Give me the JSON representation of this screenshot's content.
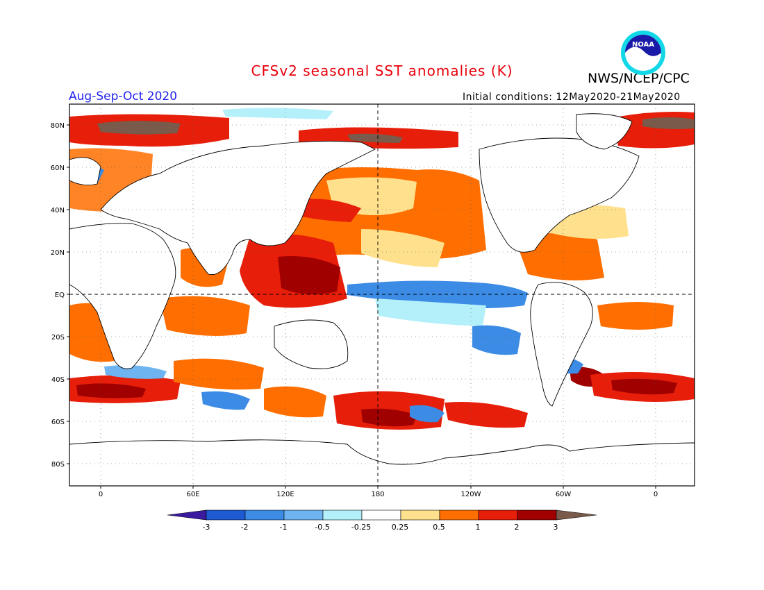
{
  "header": {
    "title": "CFSv2 seasonal SST anomalies (K)",
    "agency": "NWS/NCEP/CPC",
    "logo_text": "NOAA",
    "season": "Aug-Sep-Oct 2020",
    "initial_conditions": "Initial conditions: 12May2020-21May2020"
  },
  "map": {
    "lat_ticks": [
      "80N",
      "60N",
      "40N",
      "20N",
      "EQ",
      "20S",
      "40S",
      "60S",
      "80S"
    ],
    "lon_ticks": [
      "0",
      "60E",
      "120E",
      "180",
      "120W",
      "60W",
      "0"
    ]
  },
  "colorbar": {
    "labels": [
      "-3",
      "-2",
      "-1",
      "-0.5",
      "-0.25",
      "0.25",
      "0.5",
      "1",
      "2",
      "3"
    ],
    "colors": [
      "#3c1aa0",
      "#1e5ad2",
      "#3c8ce6",
      "#6eb4f0",
      "#b4f0fa",
      "#ffffff",
      "#ffe08c",
      "#ff6e00",
      "#e61e0a",
      "#a00000",
      "#7a5a4a"
    ]
  }
}
